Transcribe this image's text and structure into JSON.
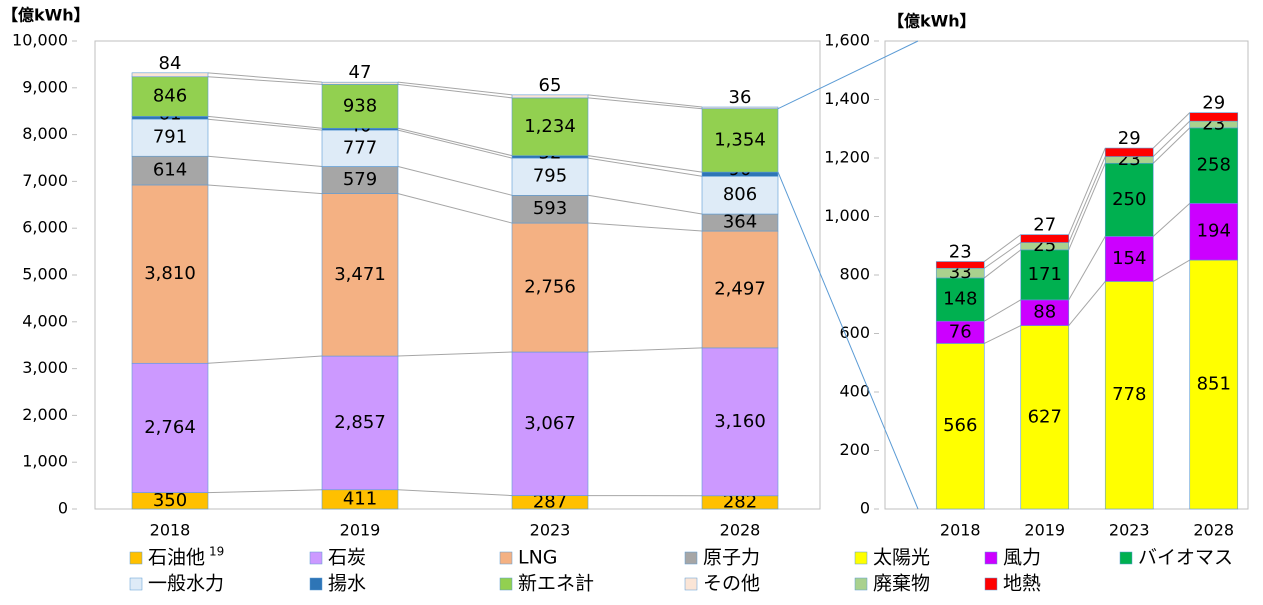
{
  "chart_data": [
    {
      "type": "stacked_bar",
      "y_label": "【億kWh】",
      "categories": [
        "2018",
        "2019",
        "2023",
        "2028"
      ],
      "ylim": [
        0,
        10000
      ],
      "yticks": [
        0,
        {
          "value": 1000,
          "label": "1,000"
        },
        {
          "value": 2000,
          "label": "2,000"
        },
        {
          "value": 3000,
          "label": "3,000"
        },
        {
          "value": 4000,
          "label": "4,000"
        },
        {
          "value": 5000,
          "label": "5,000"
        },
        {
          "value": 6000,
          "label": "6,000"
        },
        {
          "value": 7000,
          "label": "7,000"
        },
        {
          "value": 8000,
          "label": "8,000"
        },
        {
          "value": 9000,
          "label": "9,000"
        },
        {
          "value": 10000,
          "label": "10,000"
        }
      ],
      "series": [
        {
          "name": "石油他",
          "note": "19",
          "color": "#ffc000",
          "values": [
            350,
            411,
            287,
            282
          ]
        },
        {
          "name": "石炭",
          "color": "#cc99ff",
          "values": [
            2764,
            2857,
            3067,
            3160
          ],
          "value_labels": [
            "2,764",
            "2,857",
            "3,067",
            "3,160"
          ]
        },
        {
          "name": "LNG",
          "color": "#f4b183",
          "values": [
            3810,
            3471,
            2756,
            2497
          ],
          "value_labels": [
            "3,810",
            "3,471",
            "2,756",
            "2,497"
          ]
        },
        {
          "name": "原子力",
          "color": "#a6a6a6",
          "values": [
            614,
            579,
            593,
            364
          ]
        },
        {
          "name": "一般水力",
          "color": "#deebf7",
          "values": [
            791,
            777,
            795,
            806
          ]
        },
        {
          "name": "揚水",
          "color": "#2e75b6",
          "values": [
            61,
            40,
            52,
            90
          ]
        },
        {
          "name": "新エネ計",
          "color": "#92d050",
          "values": [
            846,
            938,
            1234,
            1354
          ],
          "value_labels": [
            "846",
            "938",
            "1,234",
            "1,354"
          ]
        },
        {
          "name": "その他",
          "color": "#fbe5d6",
          "values": [
            84,
            47,
            65,
            36
          ]
        }
      ]
    },
    {
      "type": "stacked_bar",
      "y_label": "【億kWh】",
      "categories": [
        "2018",
        "2019",
        "2023",
        "2028"
      ],
      "ylim": [
        0,
        1600
      ],
      "yticks": [
        0,
        200,
        400,
        600,
        800,
        {
          "value": 1000,
          "label": "1,000"
        },
        {
          "value": 1200,
          "label": "1,200"
        },
        {
          "value": 1400,
          "label": "1,400"
        },
        {
          "value": 1600,
          "label": "1,600"
        }
      ],
      "series": [
        {
          "name": "太陽光",
          "color": "#ffff00",
          "values": [
            566,
            627,
            778,
            851
          ]
        },
        {
          "name": "風力",
          "color": "#cc00ff",
          "values": [
            76,
            88,
            154,
            194
          ]
        },
        {
          "name": "バイオマス",
          "color": "#00b050",
          "values": [
            148,
            171,
            250,
            258
          ]
        },
        {
          "name": "廃棄物",
          "color": "#a9d18e",
          "values": [
            33,
            25,
            23,
            23
          ]
        },
        {
          "name": "地熱",
          "color": "#ff0000",
          "values": [
            23,
            27,
            29,
            29
          ]
        }
      ]
    }
  ]
}
